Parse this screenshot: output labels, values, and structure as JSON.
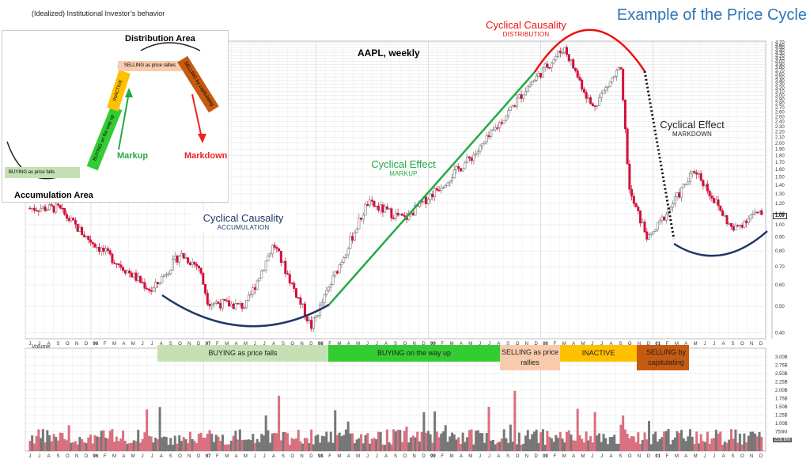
{
  "header": {
    "subtitle": "(Idealized) Institutional Investor’s behavior",
    "title": "Example of the Price Cycle"
  },
  "inset": {
    "distribution_label": "Distribution Area",
    "accumulation_label": "Accumulation Area",
    "markup_label": "Markup",
    "markdown_label": "Markdown",
    "boxes": [
      {
        "label": "BUYING as price falls",
        "color": "#c5e0b4"
      },
      {
        "label": "BUYING on the way up",
        "color": "#33cc33"
      },
      {
        "label": "INACTIVE",
        "color": "#ffc000"
      },
      {
        "label": "SELLING as price rallies",
        "color": "#f8cbad"
      },
      {
        "label": "SELLING by capitulating",
        "color": "#c55a11"
      }
    ]
  },
  "annotations": {
    "chart_label": "AAPL, weekly",
    "accumulation": {
      "title": "Cyclical Causality",
      "sub": "ACCUMULATION",
      "color": "#1f3864"
    },
    "markup": {
      "title": "Cyclical Effect",
      "sub": "MARKUP",
      "color": "#22aa44"
    },
    "distribution": {
      "title": "Cyclical Causality",
      "sub": "DISTRIBUTION",
      "color": "#ee1111"
    },
    "markdown": {
      "title": "Cyclical Effect",
      "sub": "MARKDOWN",
      "color": "#222222"
    }
  },
  "phases": [
    {
      "label": "BUYING as price falls",
      "color": "#c5e0b4"
    },
    {
      "label": "BUYING on the way up",
      "color": "#33cc33"
    },
    {
      "label": "SELLING as price rallies",
      "color": "#f8cbad"
    },
    {
      "label": "INACTIVE",
      "color": "#ffc000"
    },
    {
      "label": "SELLING by capitulating",
      "color": "#c55a11"
    }
  ],
  "volume_label": "Volume",
  "current_price_tag": "1.09",
  "current_volume_tag": "228.6M",
  "chart_data": {
    "type": "candlestick",
    "title": "AAPL, weekly",
    "price_axis_ticks": [
      0.4,
      0.5,
      0.6,
      0.7,
      0.8,
      0.9,
      1.0,
      1.1,
      1.2,
      1.3,
      1.4,
      1.5,
      1.6,
      1.7,
      1.8,
      1.9,
      2.0,
      2.1,
      2.2,
      2.3,
      2.4,
      2.5,
      2.6,
      2.7,
      2.8,
      2.9,
      3.0,
      3.1,
      3.2,
      3.3,
      3.4,
      3.5,
      3.6,
      3.7,
      3.8,
      3.9,
      4.0,
      4.1,
      4.2,
      4.3,
      4.4,
      4.5,
      4.6,
      4.7
    ],
    "price_scale": "log",
    "volume_axis_ticks": [
      "500M",
      "750M",
      "1.00B",
      "1.25B",
      "1.50B",
      "1.75B",
      "2.00B",
      "2.25B",
      "2.50B",
      "2.75B",
      "3.00B"
    ],
    "month_labels": [
      "J",
      "J",
      "A",
      "S",
      "O",
      "N",
      "D",
      "96",
      "F",
      "M",
      "A",
      "M",
      "J",
      "J",
      "A",
      "S",
      "O",
      "N",
      "D",
      "97",
      "F",
      "M",
      "A",
      "M",
      "J",
      "J",
      "A",
      "S",
      "O",
      "N",
      "D",
      "98",
      "F",
      "M",
      "A",
      "M",
      "J",
      "J",
      "A",
      "S",
      "O",
      "N",
      "D",
      "99",
      "F",
      "M",
      "A",
      "M",
      "J",
      "J",
      "A",
      "S",
      "O",
      "N",
      "D",
      "00",
      "F",
      "M",
      "A",
      "M",
      "J",
      "J",
      "A",
      "S",
      "O",
      "N",
      "D",
      "01",
      "F",
      "M",
      "A",
      "M",
      "J",
      "J",
      "A",
      "S",
      "O",
      "N",
      "D"
    ],
    "price_path_approx": [
      {
        "x": "1995-06",
        "close": 1.15
      },
      {
        "x": "1995-09",
        "close": 1.15
      },
      {
        "x": "1995-12",
        "close": 0.9
      },
      {
        "x": "1996-07",
        "close": 0.57
      },
      {
        "x": "1996-10",
        "close": 0.78
      },
      {
        "x": "1996-12",
        "close": 0.7
      },
      {
        "x": "1997-01",
        "close": 0.52
      },
      {
        "x": "1997-05",
        "close": 0.5
      },
      {
        "x": "1997-08",
        "close": 0.85
      },
      {
        "x": "1997-12",
        "close": 0.42
      },
      {
        "x": "1998-06",
        "close": 1.2
      },
      {
        "x": "1998-10",
        "close": 1.05
      },
      {
        "x": "1999-06",
        "close": 1.9
      },
      {
        "x": "1999-11",
        "close": 3.2
      },
      {
        "x": "2000-03",
        "close": 4.5
      },
      {
        "x": "2000-06",
        "close": 2.7
      },
      {
        "x": "2000-09",
        "close": 3.8
      },
      {
        "x": "2000-10",
        "close": 1.3
      },
      {
        "x": "2000-12",
        "close": 0.88
      },
      {
        "x": "2001-05",
        "close": 1.6
      },
      {
        "x": "2001-09",
        "close": 0.95
      },
      {
        "x": "2001-11",
        "close": 1.09
      }
    ],
    "annotations": [
      "Cyclical Causality / ACCUMULATION",
      "Cyclical Effect / MARKUP",
      "Cyclical Causality / DISTRIBUTION",
      "Cyclical Effect / MARKDOWN"
    ],
    "grid": true
  }
}
